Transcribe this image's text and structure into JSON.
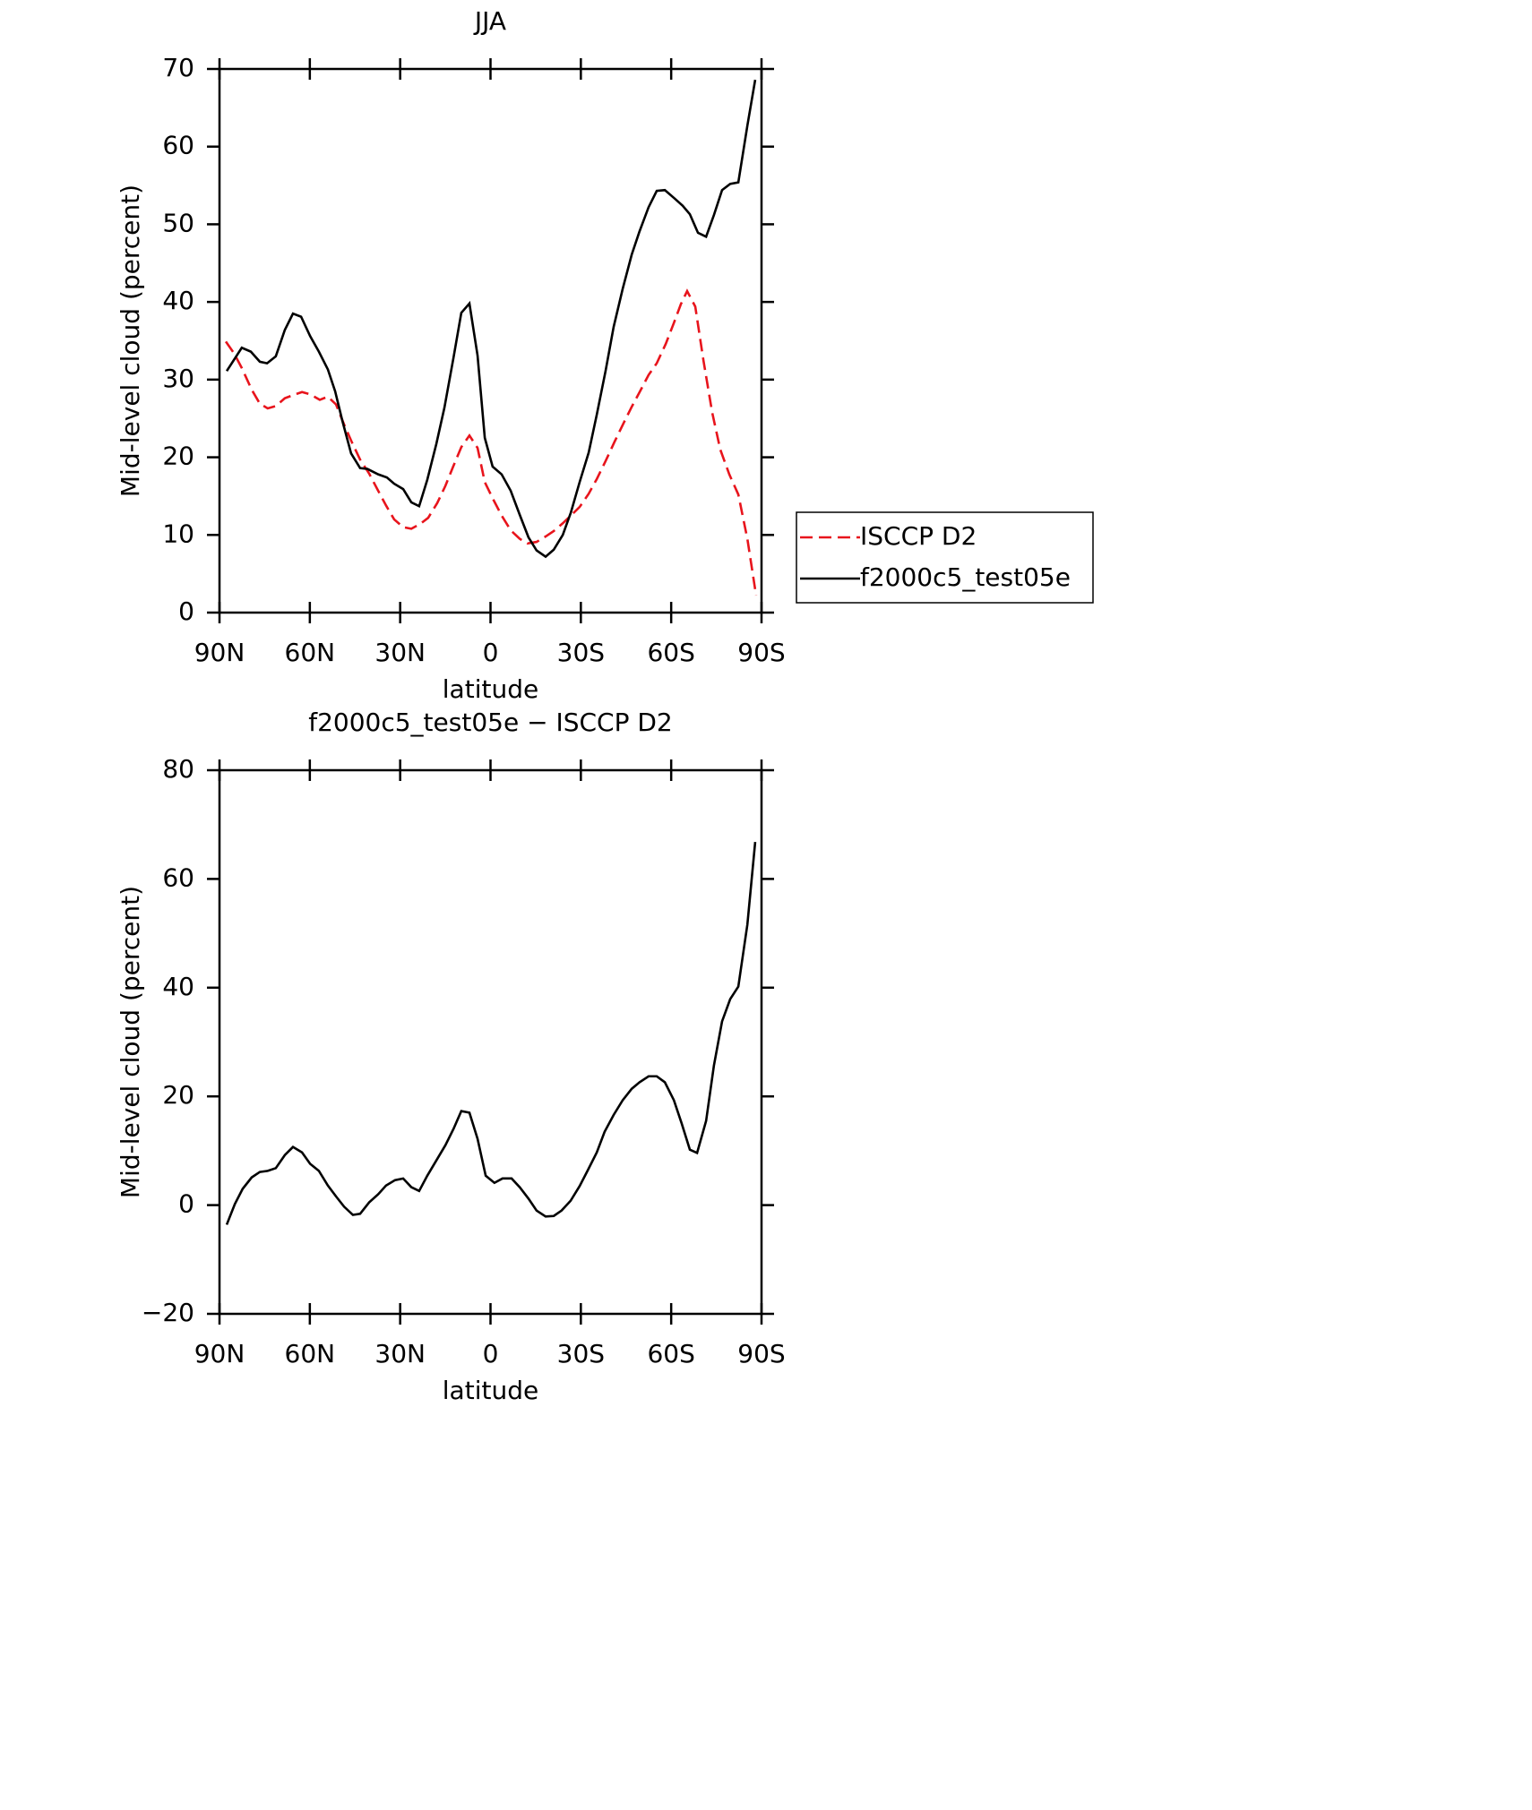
{
  "chart_data": [
    {
      "type": "line",
      "title": "JJA",
      "xlabel": "latitude",
      "ylabel": "Mid-level cloud (percent)",
      "xlim": [
        90,
        -90
      ],
      "xticks": [
        {
          "value": 90,
          "label": "90N"
        },
        {
          "value": 60,
          "label": "60N"
        },
        {
          "value": 30,
          "label": "30N"
        },
        0,
        {
          "value": -30,
          "label": "30S"
        },
        {
          "value": -60,
          "label": "60S"
        },
        {
          "value": -90,
          "label": "90S"
        }
      ],
      "ylim": [
        0,
        70
      ],
      "yticks": [
        0,
        10,
        20,
        30,
        40,
        50,
        60,
        70
      ],
      "legend": "right",
      "series": [
        {
          "name": "ISCCP D2",
          "color": "#e8141c",
          "dash": "dashed",
          "x": [
            87.9,
            85.2,
            82.6,
            79.3,
            76.6,
            74.0,
            71.3,
            68.3,
            65.6,
            62.6,
            59.9,
            56.7,
            54.0,
            51.3,
            48.6,
            46.0,
            43.3,
            40.3,
            37.6,
            34.7,
            32.0,
            29.0,
            26.3,
            23.4,
            20.7,
            17.7,
            15.0,
            12.3,
            9.7,
            7.0,
            4.3,
            1.9,
            -1.0,
            -3.7,
            -6.7,
            -9.7,
            -12.3,
            -15.3,
            -18.3,
            -21.0,
            -24.0,
            -26.7,
            -29.6,
            -32.6,
            -35.3,
            -38.2,
            -41.2,
            -44.2,
            -46.9,
            -49.8,
            -52.5,
            -55.2,
            -58.2,
            -60.9,
            -63.2,
            -65.3,
            -68.0,
            -70.7,
            -73.6,
            -76.3,
            -79.3,
            -82.3,
            -85.3,
            -88.2
          ],
          "values": [
            34.9,
            33.4,
            31.5,
            28.7,
            26.9,
            26.3,
            26.6,
            27.6,
            28.0,
            28.4,
            28.1,
            27.4,
            27.8,
            26.8,
            24.2,
            21.9,
            19.7,
            17.9,
            15.9,
            13.8,
            12.0,
            11.0,
            10.8,
            11.4,
            12.2,
            14.1,
            16.3,
            18.9,
            21.3,
            22.8,
            21.2,
            16.8,
            14.5,
            12.5,
            10.6,
            9.5,
            8.9,
            9.1,
            9.8,
            10.5,
            11.5,
            12.5,
            13.6,
            15.3,
            17.2,
            19.5,
            22.0,
            24.4,
            26.5,
            28.6,
            30.6,
            32.1,
            34.6,
            37.3,
            39.7,
            41.4,
            39.4,
            32.5,
            25.8,
            21.0,
            17.8,
            15.2,
            9.5,
            2.2
          ]
        },
        {
          "name": "f2000c5_test05e",
          "color": "#000000",
          "dash": "solid",
          "x": [
            87.6,
            82.6,
            79.6,
            76.6,
            74.2,
            71.3,
            68.3,
            65.6,
            62.9,
            59.9,
            57.0,
            54.0,
            51.6,
            49.2,
            46.3,
            43.3,
            40.9,
            37.3,
            34.4,
            32.0,
            29.0,
            26.3,
            23.7,
            21.0,
            18.0,
            15.3,
            12.3,
            9.7,
            7.0,
            4.3,
            1.9,
            -0.7,
            -3.7,
            -6.7,
            -9.7,
            -12.6,
            -15.3,
            -18.3,
            -21.0,
            -24.0,
            -26.7,
            -29.6,
            -32.6,
            -35.3,
            -38.2,
            -40.9,
            -43.9,
            -46.9,
            -49.5,
            -52.5,
            -55.2,
            -57.9,
            -60.9,
            -63.8,
            -66.2,
            -68.9,
            -71.6,
            -74.2,
            -76.9,
            -79.6,
            -82.3,
            -85.3,
            -87.9
          ],
          "values": [
            31.1,
            34.1,
            33.6,
            32.3,
            32.1,
            33.0,
            36.4,
            38.5,
            38.1,
            35.6,
            33.6,
            31.3,
            28.5,
            24.7,
            20.5,
            18.6,
            18.5,
            17.8,
            17.4,
            16.6,
            15.9,
            14.2,
            13.7,
            17.1,
            21.7,
            26.4,
            32.8,
            38.6,
            39.8,
            33.1,
            22.5,
            18.8,
            17.8,
            15.7,
            12.6,
            9.7,
            8.0,
            7.2,
            8.1,
            10.0,
            12.9,
            16.8,
            20.6,
            25.5,
            31.1,
            36.8,
            41.7,
            46.1,
            49.1,
            52.2,
            54.3,
            54.4,
            53.4,
            52.4,
            51.3,
            48.9,
            48.4,
            51.2,
            54.4,
            55.2,
            55.4,
            62.7,
            68.6
          ]
        }
      ]
    },
    {
      "type": "line",
      "title": "f2000c5_test05e − ISCCP D2",
      "xlabel": "latitude",
      "ylabel": "Mid-level cloud (percent)",
      "xlim": [
        90,
        -90
      ],
      "xticks": [
        {
          "value": 90,
          "label": "90N"
        },
        {
          "value": 60,
          "label": "60N"
        },
        {
          "value": 30,
          "label": "30N"
        },
        0,
        {
          "value": -30,
          "label": "30S"
        },
        {
          "value": -60,
          "label": "60S"
        },
        {
          "value": -90,
          "label": "90S"
        }
      ],
      "ylim": [
        -20,
        80
      ],
      "yticks": [
        {
          "value": -20,
          "label": "−20"
        },
        0,
        20,
        40,
        60,
        80
      ],
      "series": [
        {
          "color": "#000000",
          "dash": "solid",
          "x": [
            87.6,
            84.9,
            82.3,
            79.3,
            76.6,
            74.0,
            71.3,
            68.3,
            65.6,
            62.6,
            59.9,
            57.0,
            54.0,
            51.3,
            48.6,
            45.7,
            43.3,
            40.3,
            37.3,
            34.7,
            31.7,
            29.0,
            26.3,
            23.7,
            21.0,
            18.0,
            15.0,
            12.3,
            9.7,
            7.0,
            4.3,
            1.6,
            -1.3,
            -4.0,
            -7.0,
            -9.7,
            -12.6,
            -15.3,
            -18.3,
            -21.0,
            -23.6,
            -26.6,
            -29.6,
            -32.3,
            -35.3,
            -37.9,
            -40.9,
            -43.9,
            -46.9,
            -49.5,
            -52.5,
            -55.2,
            -57.9,
            -60.9,
            -63.5,
            -66.2,
            -68.6,
            -71.6,
            -74.2,
            -76.9,
            -79.6,
            -82.3,
            -85.3,
            -87.9
          ],
          "values": [
            -3.6,
            0.2,
            3.0,
            5.1,
            6.1,
            6.3,
            6.8,
            9.2,
            10.7,
            9.7,
            7.6,
            6.3,
            3.6,
            1.6,
            -0.3,
            -1.8,
            -1.6,
            0.5,
            2.0,
            3.6,
            4.6,
            4.9,
            3.3,
            2.6,
            5.4,
            8.2,
            11.0,
            14.0,
            17.3,
            17.0,
            12.2,
            5.4,
            4.1,
            4.9,
            4.9,
            3.3,
            1.2,
            -1.0,
            -2.1,
            -2.0,
            -1.0,
            0.8,
            3.5,
            6.4,
            9.7,
            13.5,
            16.6,
            19.3,
            21.4,
            22.6,
            23.7,
            23.7,
            22.6,
            19.3,
            15.0,
            10.2,
            9.6,
            15.5,
            25.7,
            33.8,
            37.9,
            40.2,
            51.6,
            66.8
          ]
        }
      ]
    }
  ]
}
